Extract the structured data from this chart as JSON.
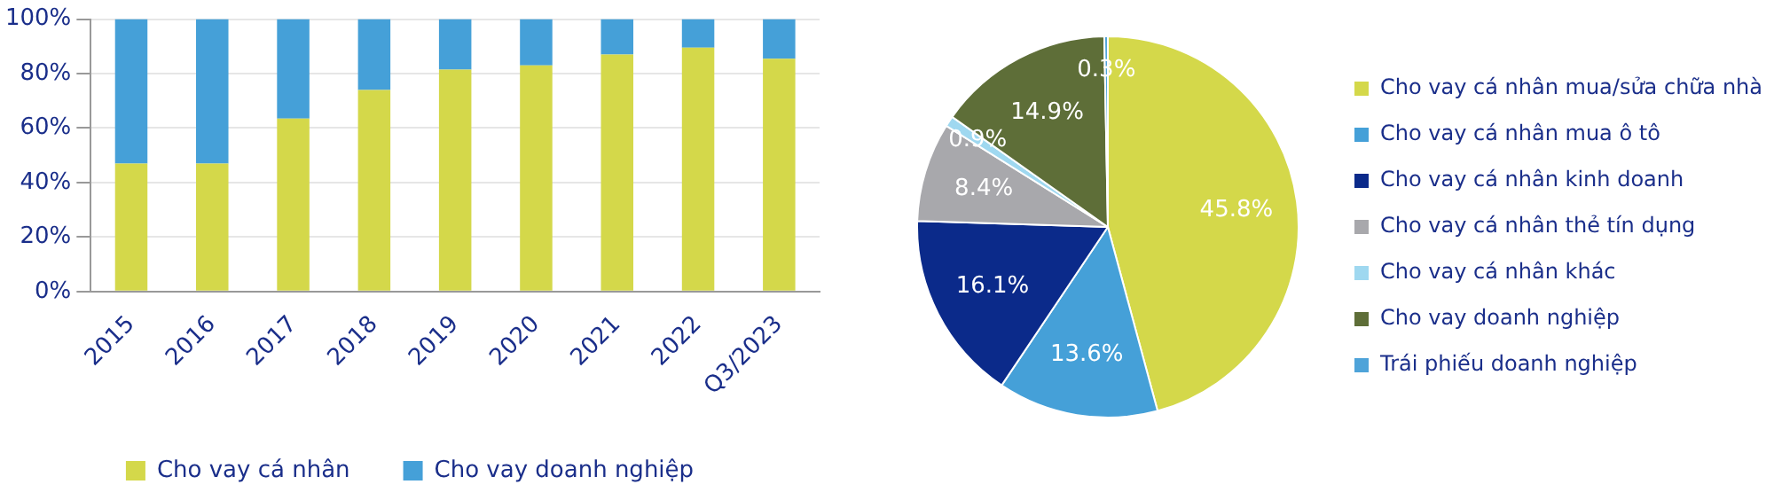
{
  "chart_data": [
    {
      "type": "bar",
      "stacked": true,
      "categories": [
        "2015",
        "2016",
        "2017",
        "2018",
        "2019",
        "2020",
        "2021",
        "2022",
        "Q3/2023"
      ],
      "series": [
        {
          "name": "Cho vay cá nhân",
          "color": "#d4d84a",
          "values": [
            47,
            47,
            63.5,
            74,
            81.5,
            83,
            87,
            89.5,
            85.5
          ]
        },
        {
          "name": "Cho vay doanh nghiệp",
          "color": "#45a0d8",
          "values": [
            53,
            53,
            36.5,
            26,
            18.5,
            17,
            13,
            10.5,
            14.5
          ]
        }
      ],
      "ylim": [
        0,
        100
      ],
      "yticks": [
        {
          "value": 0,
          "label": "0%"
        },
        {
          "value": 20,
          "label": "20%"
        },
        {
          "value": 40,
          "label": "40%"
        },
        {
          "value": 60,
          "label": "60%"
        },
        {
          "value": 80,
          "label": "80%"
        },
        {
          "value": 100,
          "label": "100%"
        }
      ],
      "grid": "y",
      "legend": "bottom"
    },
    {
      "type": "pie",
      "categories": [
        "Cho vay cá nhân mua/sửa chữa nhà",
        "Cho vay cá nhân mua ô tô",
        "Cho vay cá nhân kinh doanh",
        "Cho vay cá nhân thẻ tín dụng",
        "Cho vay cá nhân khác",
        "Cho vay doanh nghiệp",
        "Trái phiếu doanh nghiệp"
      ],
      "values": [
        45.8,
        13.6,
        16.1,
        8.4,
        0.9,
        14.9,
        0.3
      ],
      "colors": [
        "#d4d84a",
        "#45a0d8",
        "#0b2a8a",
        "#a8a8ac",
        "#9fd8f0",
        "#5e6e38",
        "#4ea3d9"
      ],
      "value_labels": [
        "45.8%",
        "13.6%",
        "16.1%",
        "8.4%",
        "0.9%",
        "14.9%",
        "0.3%"
      ],
      "legend": "right"
    }
  ]
}
